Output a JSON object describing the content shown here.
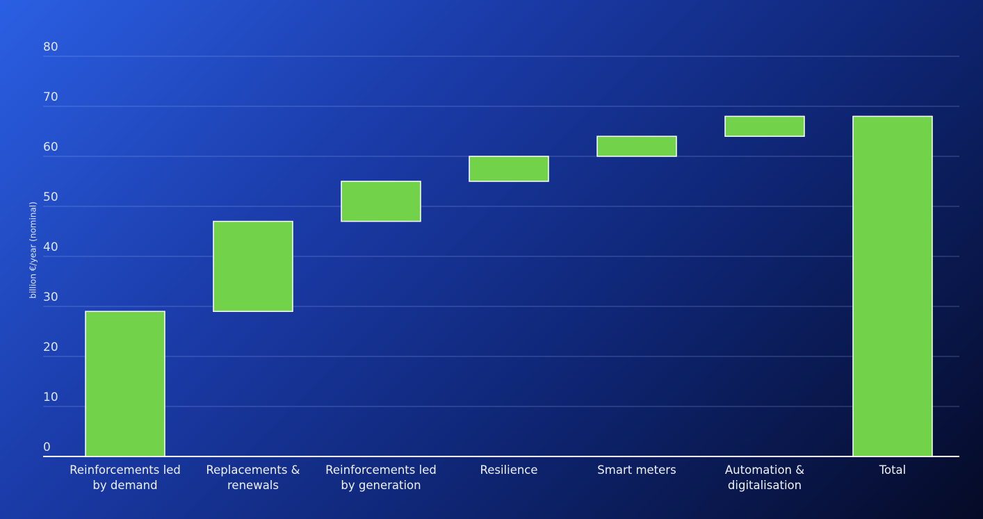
{
  "chart_data": {
    "type": "waterfall",
    "y_label": "billion €/year (nominal)",
    "categories": [
      "Reinforcements led by demand",
      "Replacements & renewals",
      "Reinforcements led by generation",
      "Resilience",
      "Smart meters",
      "Automation & digitalisation",
      "Total"
    ],
    "values": [
      29,
      18,
      8,
      5,
      4,
      4,
      68
    ],
    "is_total": [
      false,
      false,
      false,
      false,
      false,
      false,
      true
    ],
    "color": "#72d34a",
    "ylim": [
      0,
      80
    ],
    "yticks": [
      0,
      10,
      20,
      30,
      40,
      50,
      60,
      70,
      80
    ],
    "grid": true
  }
}
